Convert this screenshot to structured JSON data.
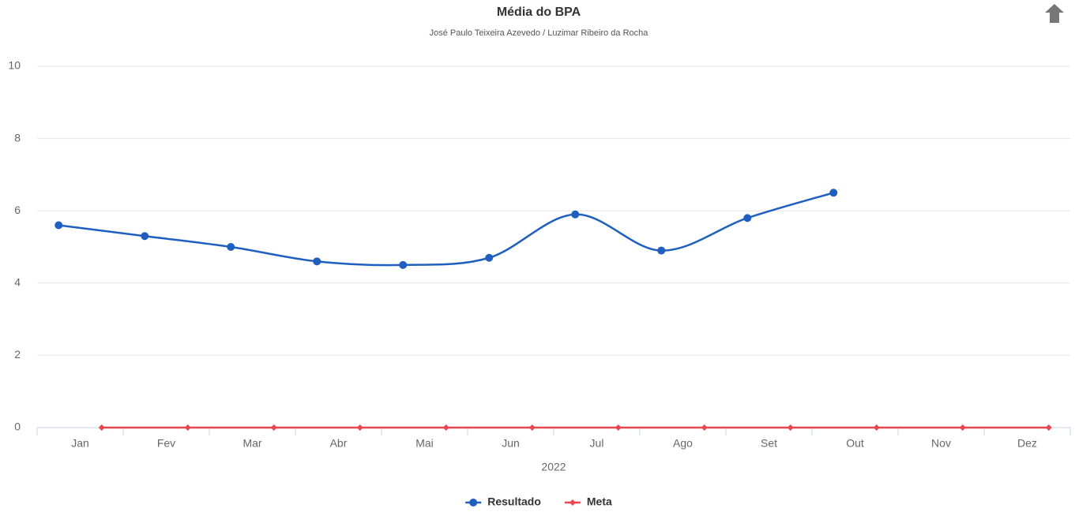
{
  "chart_data": {
    "type": "line",
    "title": "Média do BPA",
    "subtitle": "José Paulo Teixeira Azevedo / Luzimar Ribeiro da Rocha",
    "x_label": "2022",
    "categories": [
      "Jan",
      "Fev",
      "Mar",
      "Abr",
      "Mai",
      "Jun",
      "Jul",
      "Ago",
      "Set",
      "Out",
      "Nov",
      "Dez"
    ],
    "series": [
      {
        "name": "Resultado",
        "color": "#1f5fbf",
        "marker": "circle",
        "smooth": true,
        "values": [
          5.6,
          5.3,
          5.0,
          4.6,
          4.5,
          4.7,
          5.9,
          4.9,
          5.8,
          6.5,
          null,
          null
        ]
      },
      {
        "name": "Meta",
        "color": "#e8474f",
        "marker": "diamond",
        "smooth": false,
        "values": [
          0,
          0,
          0,
          0,
          0,
          0,
          0,
          0,
          0,
          0,
          0,
          0
        ]
      }
    ],
    "ylim": [
      0,
      10
    ],
    "yticks": [
      0,
      2,
      4,
      6,
      8,
      10
    ],
    "grid": true,
    "legend": "bottom"
  }
}
